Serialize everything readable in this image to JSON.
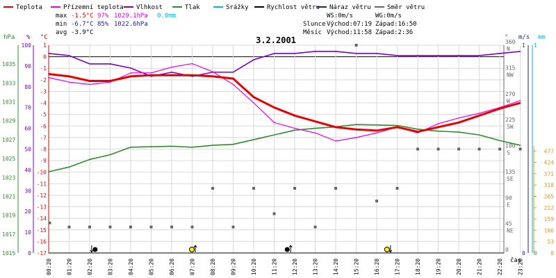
{
  "legend": [
    {
      "label": "Teplota",
      "color": "#e60000"
    },
    {
      "label": "Přízemní teplota",
      "color": "#e600e6"
    },
    {
      "label": "Vlhkost",
      "color": "#7f00bf"
    },
    {
      "label": "Tlak",
      "color": "#2e8b2e"
    },
    {
      "label": "Srážky",
      "color": "#00b2e6"
    },
    {
      "label": "Rychlost větru",
      "color": "#000000"
    },
    {
      "label": "Náraz větru",
      "color": "#1e1e96"
    },
    {
      "label": "Směr větru",
      "color": "#666666"
    }
  ],
  "stats": {
    "max_label": "max",
    "min_label": "min",
    "avg_label": "avg",
    "max_temp": "-1.5°C",
    "max_hum": "97%",
    "max_press": "1029.1hPa",
    "max_rain": "0.0mm",
    "min_temp": "-6.7°C",
    "min_hum": "85%",
    "min_press": "1022.6hPa",
    "avg_temp": "-3.9°C"
  },
  "wind": {
    "ws": "WS:0m/s",
    "wg": "WG:0m/s"
  },
  "sun": {
    "label": "Slunce",
    "rise": "Východ:07:19",
    "set": "Západ:16:50"
  },
  "moon": {
    "label": "Měsíc",
    "rise": "Východ:11:58",
    "set": "Západ:2:36"
  },
  "colors": {
    "temp": "#e60000",
    "ground_temp": "#e600e6",
    "humidity": "#7f00bf",
    "pressure": "#2e8b2e",
    "rain": "#00b2e6",
    "wind_speed": "#000000",
    "wind_gust": "#1e1e96",
    "wind_dir": "#666666",
    "rain_axis": "#e69619"
  },
  "chart_data": {
    "type": "line",
    "title": "3.2.2001",
    "xlabel": "čas",
    "x": [
      "00:20",
      "01:20",
      "02:20",
      "03:20",
      "04:20",
      "05:20",
      "06:20",
      "07:20",
      "08:20",
      "09:20",
      "10:20",
      "11:20",
      "12:20",
      "13:20",
      "14:20",
      "15:20",
      "16:20",
      "17:20",
      "18:20",
      "19:20",
      "20:20",
      "21:20",
      "22:20",
      "23:20"
    ],
    "axes": {
      "pressure": {
        "unit": "hPa",
        "range": [
          1015,
          1037
        ],
        "ticks": [
          "1015",
          "1017",
          "1019",
          "1021",
          "1023",
          "1025",
          "1027",
          "1029",
          "1031",
          "1033",
          "1035"
        ]
      },
      "humidity": {
        "unit": "%",
        "range": [
          0,
          100
        ],
        "ticks": [
          "0",
          "10",
          "20",
          "30",
          "40",
          "50",
          "60",
          "70",
          "80",
          "90",
          "100"
        ]
      },
      "temperature": {
        "unit": "°C",
        "range": [
          -17,
          1
        ],
        "ticks": [
          "-17",
          "-16",
          "-15",
          "-14",
          "-13",
          "-12",
          "-11",
          "-10",
          "-9",
          "-8",
          "-7",
          "-6",
          "-5",
          "-4",
          "-3",
          "-2",
          "-1",
          "0",
          "1"
        ]
      },
      "wind_dir": {
        "unit": "°",
        "ticks": [
          {
            "deg": "360",
            "dir": "N"
          },
          {
            "deg": "315",
            "dir": "NW"
          },
          {
            "deg": "270",
            "dir": "W"
          },
          {
            "deg": "225",
            "dir": "SW"
          },
          {
            "deg": "180",
            "dir": "S"
          },
          {
            "deg": "135",
            "dir": "SE"
          },
          {
            "deg": "90",
            "dir": "E"
          },
          {
            "deg": "45",
            "dir": "NE"
          },
          {
            "deg": "0",
            "dir": ""
          }
        ]
      },
      "wind_speed": {
        "unit": "m/s",
        "range": [
          0,
          1
        ],
        "ticks": [
          "0",
          "1"
        ]
      },
      "rain": {
        "unit": "mm",
        "range": [
          0,
          1
        ],
        "ticks": [
          "0",
          "1"
        ]
      },
      "rain_cumulative": {
        "ticks": [
          "0",
          "53",
          "106",
          "159",
          "212",
          "265",
          "318",
          "371",
          "424",
          "477"
        ]
      }
    },
    "series": [
      {
        "name": "Teplota",
        "axis": "temperature",
        "values": [
          -1.5,
          -1.7,
          -2.1,
          -2.1,
          -1.7,
          -1.6,
          -1.6,
          -1.6,
          -1.7,
          -1.9,
          -3.5,
          -4.4,
          -5.1,
          -5.6,
          -6.1,
          -6.3,
          -6.4,
          -6.1,
          -6.5,
          -6.1,
          -5.7,
          -5.1,
          -4.5,
          -4.0
        ]
      },
      {
        "name": "Přízemní teplota",
        "axis": "temperature",
        "values": [
          -1.8,
          -2.2,
          -2.4,
          -2.2,
          -1.4,
          -1.4,
          -0.9,
          -0.6,
          -1.3,
          -2.4,
          -4.0,
          -5.7,
          -6.2,
          -6.6,
          -7.3,
          -7.0,
          -6.6,
          -6.1,
          -6.6,
          -5.8,
          -5.3,
          -4.9,
          -4.4,
          -3.8
        ]
      },
      {
        "name": "Vlhkost",
        "axis": "humidity",
        "values": [
          96,
          95,
          91,
          91,
          89,
          85,
          87,
          85,
          87,
          87,
          93,
          96,
          96,
          97,
          97,
          96,
          96,
          95,
          95,
          95,
          95,
          95,
          96,
          97
        ]
      },
      {
        "name": "Tlak",
        "axis": "pressure",
        "values": [
          1023.6,
          1024.1,
          1024.9,
          1025.4,
          1026.2,
          1026.25,
          1026.3,
          1026.2,
          1026.4,
          1026.5,
          1027.0,
          1027.5,
          1028.0,
          1028.2,
          1028.35,
          1028.6,
          1028.55,
          1028.5,
          1028.1,
          1027.9,
          1027.8,
          1027.5,
          1026.9,
          1026.4
        ]
      },
      {
        "name": "Směr větru",
        "axis": "wind_dir",
        "type": "scatter",
        "points": [
          {
            "x": 0.05,
            "deg": 52
          },
          {
            "x": 1,
            "deg": 45
          },
          {
            "x": 2,
            "deg": 45
          },
          {
            "x": 3,
            "deg": 45
          },
          {
            "x": 4,
            "deg": 45
          },
          {
            "x": 5,
            "deg": 45
          },
          {
            "x": 6,
            "deg": 45
          },
          {
            "x": 7,
            "deg": 45
          },
          {
            "x": 8,
            "deg": 112
          },
          {
            "x": 9,
            "deg": 45
          },
          {
            "x": 10,
            "deg": 112
          },
          {
            "x": 11,
            "deg": 68
          },
          {
            "x": 12,
            "deg": 112
          },
          {
            "x": 13,
            "deg": 45
          },
          {
            "x": 14,
            "deg": 112
          },
          {
            "x": 15,
            "deg": 360
          },
          {
            "x": 16,
            "deg": 90
          },
          {
            "x": 17,
            "deg": 112
          },
          {
            "x": 18,
            "deg": 180
          },
          {
            "x": 19,
            "deg": 180
          },
          {
            "x": 20,
            "deg": 180
          },
          {
            "x": 21,
            "deg": 180
          },
          {
            "x": 22,
            "deg": 180
          },
          {
            "x": 23,
            "deg": 180
          }
        ]
      },
      {
        "name": "Rychlost větru",
        "axis": "wind_speed",
        "values": [
          0,
          0,
          0,
          0,
          0,
          0,
          0,
          0,
          0,
          0,
          0,
          0,
          0,
          0,
          0,
          0,
          0,
          0,
          0,
          0,
          0,
          0,
          0,
          0
        ]
      },
      {
        "name": "Náraz větru",
        "axis": "wind_speed",
        "values": [
          0,
          0,
          0,
          0,
          0,
          0,
          0,
          0,
          0,
          0,
          0,
          0,
          0,
          0,
          0,
          0,
          0,
          0,
          0,
          0,
          0,
          0,
          0,
          0
        ]
      },
      {
        "name": "Srážky",
        "axis": "rain",
        "values": [
          0,
          0,
          0,
          0,
          0,
          0,
          0,
          0,
          0,
          0,
          0,
          0,
          0,
          0,
          0,
          0,
          0,
          0,
          0,
          0,
          0,
          0,
          0,
          0
        ]
      }
    ],
    "events": [
      {
        "type": "moonset",
        "time": "02:36"
      },
      {
        "type": "sunrise",
        "time": "07:19"
      },
      {
        "type": "moonrise",
        "time": "11:58"
      },
      {
        "type": "sunset",
        "time": "16:50"
      }
    ],
    "grid": true,
    "legend_position": "top"
  }
}
